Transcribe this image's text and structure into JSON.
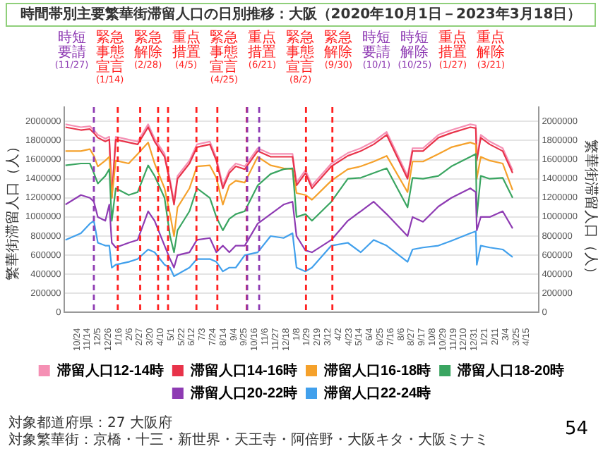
{
  "chart_data": {
    "type": "line",
    "title": "時間帯別主要繁華街滞留人口の日別推移：大阪（2020年10月1日－2023年3月18日）",
    "ylabel": "繁華街滞留人口（人）",
    "y2label": "繁華街滞留人口（人）",
    "x": [
      "2020-10-01",
      "2020-11-01",
      "2020-11-19",
      "2020-11-27",
      "2020-12-05",
      "2020-12-20",
      "2020-12-28",
      "2021-01-02",
      "2021-01-10",
      "2021-02-05",
      "2021-02-23",
      "2021-03-16",
      "2021-03-29",
      "2021-04-18",
      "2021-04-29",
      "2021-05-07",
      "2021-05-14",
      "2021-06-07",
      "2021-06-22",
      "2021-07-18",
      "2021-07-31",
      "2021-08-13",
      "2021-08-26",
      "2021-09-08",
      "2021-09-26",
      "2021-10-22",
      "2021-11-17",
      "2021-12-13",
      "2021-12-31",
      "2022-01-08",
      "2022-01-26",
      "2022-02-08",
      "2022-03-19",
      "2022-04-21",
      "2022-05-17",
      "2022-06-12",
      "2022-07-08",
      "2022-08-19",
      "2022-08-29",
      "2022-09-19",
      "2022-10-20",
      "2022-11-15",
      "2022-12-23",
      "2023-01-03",
      "2023-01-05",
      "2023-01-13",
      "2023-01-31",
      "2023-02-26",
      "2023-03-18"
    ],
    "series": [
      {
        "name": "滞留人口12-14時",
        "color": "#f590b4",
        "values": [
          1970000,
          1940000,
          1950000,
          1910000,
          1860000,
          1820000,
          1840000,
          1230000,
          1840000,
          1810000,
          1790000,
          1970000,
          1820000,
          1660000,
          1390000,
          1160000,
          1430000,
          1590000,
          1760000,
          1790000,
          1620000,
          1330000,
          1490000,
          1560000,
          1530000,
          1720000,
          1660000,
          1660000,
          1660000,
          1360000,
          1490000,
          1330000,
          1560000,
          1670000,
          1720000,
          1790000,
          1890000,
          1430000,
          1720000,
          1720000,
          1860000,
          1910000,
          1970000,
          1960000,
          1620000,
          1860000,
          1790000,
          1720000,
          1490000
        ]
      },
      {
        "name": "滞留人口14-16時",
        "color": "#e8334a",
        "values": [
          1940000,
          1910000,
          1920000,
          1880000,
          1830000,
          1790000,
          1810000,
          1200000,
          1810000,
          1780000,
          1760000,
          1940000,
          1790000,
          1630000,
          1360000,
          1130000,
          1400000,
          1560000,
          1730000,
          1760000,
          1590000,
          1300000,
          1460000,
          1530000,
          1500000,
          1690000,
          1630000,
          1630000,
          1630000,
          1330000,
          1460000,
          1300000,
          1530000,
          1640000,
          1690000,
          1760000,
          1860000,
          1400000,
          1690000,
          1690000,
          1830000,
          1880000,
          1940000,
          1930000,
          1590000,
          1830000,
          1760000,
          1690000,
          1460000
        ]
      },
      {
        "name": "滞留人口16-18時",
        "color": "#f5a12b",
        "values": [
          1690000,
          1690000,
          1710000,
          1640000,
          1530000,
          1590000,
          1630000,
          1200000,
          1590000,
          1560000,
          1660000,
          1780000,
          1560000,
          1300000,
          1030000,
          800000,
          1100000,
          1300000,
          1530000,
          1540000,
          1410000,
          1130000,
          1330000,
          1380000,
          1360000,
          1630000,
          1540000,
          1510000,
          1500000,
          1250000,
          1230000,
          1180000,
          1380000,
          1500000,
          1530000,
          1580000,
          1640000,
          1260000,
          1580000,
          1580000,
          1660000,
          1730000,
          1780000,
          1760000,
          1400000,
          1630000,
          1590000,
          1560000,
          1280000
        ]
      },
      {
        "name": "滞留人口18-20時",
        "color": "#3aa561",
        "values": [
          1540000,
          1560000,
          1560000,
          1460000,
          1350000,
          1430000,
          1500000,
          960000,
          1300000,
          1230000,
          1260000,
          1540000,
          1430000,
          1200000,
          800000,
          630000,
          860000,
          1060000,
          1300000,
          1200000,
          1000000,
          860000,
          980000,
          1030000,
          1060000,
          1330000,
          1450000,
          1500000,
          1510000,
          1000000,
          1030000,
          960000,
          1160000,
          1400000,
          1410000,
          1460000,
          1510000,
          1100000,
          1410000,
          1400000,
          1430000,
          1530000,
          1630000,
          1660000,
          1000000,
          1430000,
          1400000,
          1410000,
          1200000
        ]
      },
      {
        "name": "滞留人口20-22時",
        "color": "#8e3bb3",
        "values": [
          1130000,
          1230000,
          1200000,
          1160000,
          1000000,
          960000,
          1130000,
          730000,
          680000,
          730000,
          760000,
          1060000,
          960000,
          700000,
          560000,
          470000,
          600000,
          630000,
          760000,
          780000,
          630000,
          700000,
          630000,
          700000,
          700000,
          930000,
          1030000,
          1130000,
          1160000,
          800000,
          650000,
          630000,
          760000,
          960000,
          1060000,
          1160000,
          1030000,
          800000,
          1000000,
          950000,
          1110000,
          1200000,
          1300000,
          1260000,
          860000,
          1000000,
          1000000,
          1060000,
          880000
        ]
      },
      {
        "name": "滞留人口22-24時",
        "color": "#41a0ec",
        "values": [
          760000,
          830000,
          930000,
          960000,
          730000,
          700000,
          700000,
          470000,
          500000,
          530000,
          560000,
          660000,
          630000,
          500000,
          470000,
          380000,
          400000,
          470000,
          560000,
          560000,
          530000,
          430000,
          470000,
          470000,
          600000,
          630000,
          800000,
          780000,
          830000,
          470000,
          430000,
          470000,
          700000,
          730000,
          630000,
          760000,
          700000,
          530000,
          660000,
          680000,
          700000,
          750000,
          830000,
          850000,
          500000,
          700000,
          680000,
          660000,
          580000
        ]
      }
    ],
    "xlim": [
      "2020-09-28",
      "2023-05-10"
    ],
    "xticks": [
      {
        "value": "2020-10-24",
        "label": "10/24"
      },
      {
        "value": "2020-11-14",
        "label": "11/14"
      },
      {
        "value": "2020-12-05",
        "label": "12/5"
      },
      {
        "value": "2020-12-26",
        "label": "12/26"
      },
      {
        "value": "2021-01-16",
        "label": "1/16"
      },
      {
        "value": "2021-02-06",
        "label": "2/6"
      },
      {
        "value": "2021-02-27",
        "label": "2/27"
      },
      {
        "value": "2021-03-20",
        "label": "3/20"
      },
      {
        "value": "2021-04-10",
        "label": "4/10"
      },
      {
        "value": "2021-05-01",
        "label": "5/1"
      },
      {
        "value": "2021-05-22",
        "label": "5/22"
      },
      {
        "value": "2021-06-12",
        "label": "6/12"
      },
      {
        "value": "2021-07-03",
        "label": "7/3"
      },
      {
        "value": "2021-07-24",
        "label": "7/24"
      },
      {
        "value": "2021-08-14",
        "label": "8/14"
      },
      {
        "value": "2021-09-04",
        "label": "9/4"
      },
      {
        "value": "2021-09-25",
        "label": "9/25"
      },
      {
        "value": "2021-10-16",
        "label": "10/16"
      },
      {
        "value": "2021-11-06",
        "label": "11/6"
      },
      {
        "value": "2021-11-27",
        "label": "11/27"
      },
      {
        "value": "2021-12-18",
        "label": "12/18"
      },
      {
        "value": "2022-01-08",
        "label": "1/8"
      },
      {
        "value": "2022-01-29",
        "label": "1/29"
      },
      {
        "value": "2022-02-19",
        "label": "2/19"
      },
      {
        "value": "2022-03-12",
        "label": "3/12"
      },
      {
        "value": "2022-04-02",
        "label": "4/2"
      },
      {
        "value": "2022-04-23",
        "label": "4/23"
      },
      {
        "value": "2022-05-14",
        "label": "5/14"
      },
      {
        "value": "2022-06-04",
        "label": "6/4"
      },
      {
        "value": "2022-06-25",
        "label": "6/25"
      },
      {
        "value": "2022-07-16",
        "label": "7/16"
      },
      {
        "value": "2022-08-06",
        "label": "8/6"
      },
      {
        "value": "2022-08-27",
        "label": "8/27"
      },
      {
        "value": "2022-09-17",
        "label": "9/17"
      },
      {
        "value": "2022-10-08",
        "label": "10/8"
      },
      {
        "value": "2022-10-29",
        "label": "10/29"
      },
      {
        "value": "2022-11-19",
        "label": "11/19"
      },
      {
        "value": "2022-12-10",
        "label": "12/10"
      },
      {
        "value": "2022-12-31",
        "label": "12/31"
      },
      {
        "value": "2023-01-21",
        "label": "1/21"
      },
      {
        "value": "2023-02-11",
        "label": "2/11"
      },
      {
        "value": "2023-03-04",
        "label": "3/4"
      },
      {
        "value": "2023-03-25",
        "label": "3/25"
      },
      {
        "value": "2023-04-15",
        "label": "4/15"
      }
    ],
    "ylim": [
      0,
      2150000
    ],
    "yticks": [
      0,
      200000,
      400000,
      600000,
      800000,
      1000000,
      1200000,
      1400000,
      1600000,
      1800000,
      2000000
    ],
    "y2lim": [
      0,
      2150000
    ],
    "y2ticks": [
      0,
      200000,
      400000,
      600000,
      800000,
      1000000,
      1200000,
      1400000,
      1600000,
      1800000,
      2000000
    ],
    "ref_lines": [
      {
        "axis": "x",
        "value": "2020-11-27",
        "label": "時短要請 (11/27)",
        "color": "#8e3bb3",
        "line_style": "dashed"
      },
      {
        "axis": "x",
        "value": "2021-01-14",
        "label": "緊急事態宣言 (1/14)",
        "color": "#ff2020",
        "line_style": "dashed"
      },
      {
        "axis": "x",
        "value": "2021-02-28",
        "label": "緊急解除 (2/28)",
        "color": "#ff2020",
        "line_style": "dashed"
      },
      {
        "axis": "x",
        "value": "2021-04-05",
        "label": "重点措置 (4/5)",
        "color": "#ff2020",
        "line_style": "dashed"
      },
      {
        "axis": "x",
        "value": "2021-04-25",
        "label": "緊急事態宣言 (4/25)",
        "color": "#ff2020",
        "line_style": "dashed"
      },
      {
        "axis": "x",
        "value": "2021-06-21",
        "label": "重点措置 (6/21)",
        "color": "#ff2020",
        "line_style": "dashed"
      },
      {
        "axis": "x",
        "value": "2021-08-02",
        "label": "緊急事態宣言 (8/2)",
        "color": "#ff2020",
        "line_style": "dashed"
      },
      {
        "axis": "x",
        "value": "2021-09-30",
        "label": "緊急解除 (9/30)",
        "color": "#ff2020",
        "line_style": "dashed"
      },
      {
        "axis": "x",
        "value": "2021-10-01",
        "label": "時短要請 (10/1)",
        "color": "#8e3bb3",
        "line_style": "dashed"
      },
      {
        "axis": "x",
        "value": "2021-10-25",
        "label": "時短解除 (10/25)",
        "color": "#8e3bb3",
        "line_style": "dashed"
      },
      {
        "axis": "x",
        "value": "2022-01-27",
        "label": "重点措置 (1/27)",
        "color": "#ff2020",
        "line_style": "dashed"
      },
      {
        "axis": "x",
        "value": "2022-03-21",
        "label": "重点解除 (3/21)",
        "color": "#ff2020",
        "line_style": "dashed"
      }
    ],
    "annotations": [
      "対象都道府県：27 大阪府",
      "対象繁華街：京橋・十三・新世界・天王寺・阿倍野・大阪キタ・大阪ミナミ",
      "54"
    ],
    "grid": "y",
    "legend": "bottom",
    "marker": "none",
    "line_style": "solid"
  }
}
